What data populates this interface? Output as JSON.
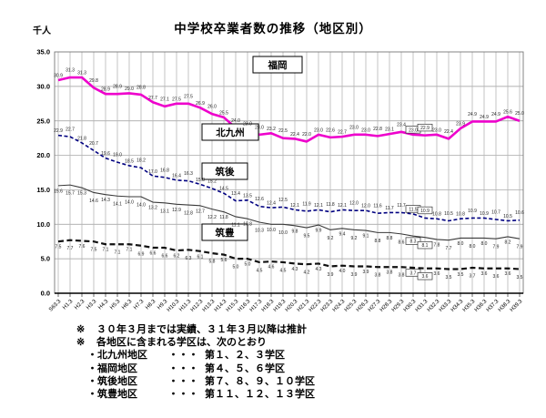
{
  "page": {
    "title": "中学校卒業者数の推移（地区別）",
    "y_unit": "千人"
  },
  "chart_data": {
    "type": "line",
    "title": "中学校卒業者数の推移（地区別）",
    "xlabel": "",
    "ylabel": "千人",
    "ylim": [
      0,
      35
    ],
    "ytick_step": 5,
    "ytick_labels": [
      "0.0",
      "5.0",
      "10.0",
      "15.0",
      "20.0",
      "25.0",
      "30.0",
      "35.0"
    ],
    "grid": "both",
    "legend_position": "inline-boxed-labels",
    "categories": [
      "S63.3",
      "H1.3",
      "H2.3",
      "H3.3",
      "H4.3",
      "H5.3",
      "H6.3",
      "H7.3",
      "H8.3",
      "H9.3",
      "H10.3",
      "H11.3",
      "H12.3",
      "H13.3",
      "H14.3",
      "H15.3",
      "H16.3",
      "H17.3",
      "H18.3",
      "H19.3",
      "H20.3",
      "H21.3",
      "H22.3",
      "H23.3",
      "H24.3",
      "H25.3",
      "H26.3",
      "H27.3",
      "H28.3",
      "H29.3",
      "H30.3",
      "H31.3",
      "H32.3",
      "H33.3",
      "H34.3",
      "H35.3",
      "H36.3",
      "H37.3",
      "H38.3",
      "H39.3"
    ],
    "boxed_label_indices": [
      30,
      31
    ],
    "series": [
      {
        "id": "fukuoka",
        "name": "福岡",
        "color": "#ee00cc",
        "style": "solid",
        "width": 2.6,
        "label_side": "above",
        "values": [
          30.9,
          31.3,
          31.3,
          29.8,
          28.9,
          28.9,
          29.0,
          28.8,
          27.7,
          27.1,
          27.5,
          27.5,
          26.9,
          26.0,
          25.5,
          24.0,
          23.9,
          23.0,
          23.2,
          22.5,
          22.4,
          22.0,
          23.0,
          22.6,
          22.7,
          23.0,
          23.0,
          22.8,
          23.1,
          23.4,
          23.0,
          22.9,
          23.0,
          22.4,
          23.9,
          24.9,
          24.9,
          24.9,
          25.6,
          25.0
        ]
      },
      {
        "id": "kitakyushu",
        "name": "北九州",
        "color": "#000080",
        "style": "dashed",
        "width": 1.6,
        "label_side": "above",
        "values": [
          22.9,
          22.7,
          21.8,
          20.7,
          19.6,
          19.0,
          18.5,
          18.2,
          17.0,
          16.8,
          16.4,
          16.3,
          15.8,
          15.2,
          14.5,
          13.4,
          13.5,
          12.6,
          12.4,
          12.5,
          12.1,
          11.9,
          12.1,
          11.8,
          12.1,
          12.0,
          12.0,
          11.6,
          11.7,
          11.7,
          11.5,
          10.9,
          10.8,
          10.5,
          10.8,
          10.9,
          10.9,
          10.7,
          10.5,
          10.6
        ]
      },
      {
        "id": "chikugo",
        "name": "筑後",
        "color": "#3a3a3a",
        "style": "solid",
        "width": 1.1,
        "label_side": "below",
        "values": [
          15.6,
          15.7,
          15.3,
          14.6,
          14.3,
          14.1,
          14.0,
          14.0,
          13.2,
          13.1,
          12.9,
          12.8,
          12.7,
          12.2,
          11.8,
          11.1,
          10.8,
          10.3,
          10.0,
          10.0,
          9.8,
          9.5,
          9.9,
          9.2,
          9.4,
          9.2,
          9.1,
          8.8,
          8.8,
          8.6,
          8.3,
          8.1,
          7.8,
          7.7,
          8.0,
          8.0,
          8.0,
          7.9,
          8.2,
          7.9
        ]
      },
      {
        "id": "chikuho",
        "name": "筑豊",
        "color": "#111111",
        "style": "dashed",
        "width": 2.2,
        "label_side": "below",
        "values": [
          7.5,
          7.7,
          7.6,
          7.5,
          7.1,
          7.1,
          7.1,
          6.9,
          6.6,
          6.6,
          6.2,
          6.3,
          6.1,
          5.8,
          5.6,
          5.0,
          5.0,
          4.5,
          4.6,
          4.5,
          4.3,
          4.2,
          4.3,
          3.9,
          4.0,
          3.9,
          3.9,
          3.8,
          3.8,
          3.8,
          3.7,
          3.6,
          3.6,
          3.5,
          3.5,
          3.7,
          3.6,
          3.6,
          3.6,
          3.5
        ]
      }
    ]
  },
  "notes": {
    "remarks": [
      {
        "mark": "※",
        "text": "３０年３月までは実績、３１年３月以降は推計"
      },
      {
        "mark": "※",
        "text": "各地区に含まれる学区は、次のとおり"
      }
    ],
    "districts": [
      {
        "bullet": "・",
        "name": "北九州地区",
        "dots": "・・・",
        "value": "第１、２、３学区"
      },
      {
        "bullet": "・",
        "name": "福岡地区",
        "dots": "・・・",
        "value": "第４、５、６学区"
      },
      {
        "bullet": "・",
        "name": "筑後地区",
        "dots": "・・・",
        "value": "第７、８、９、１０学区"
      },
      {
        "bullet": "・",
        "name": "筑豊地区",
        "dots": "・・・",
        "value": "第１１、１２、１３学区"
      }
    ]
  }
}
